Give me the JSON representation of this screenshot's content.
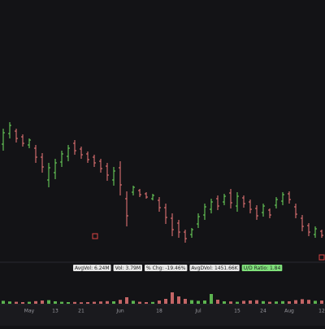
{
  "chart_data": {
    "type": "ohlc",
    "categories": [
      null,
      null,
      null,
      null,
      "May",
      null,
      null,
      null,
      "13",
      null,
      null,
      null,
      "21",
      null,
      null,
      null,
      null,
      null,
      "Jun",
      null,
      null,
      null,
      null,
      null,
      "18",
      null,
      null,
      null,
      null,
      null,
      "Jul",
      null,
      null,
      null,
      null,
      null,
      "15",
      null,
      null,
      null,
      "24",
      null,
      null,
      null,
      "Aug",
      null,
      null,
      null,
      null,
      "12"
    ],
    "open": [
      143,
      156,
      159,
      152,
      142,
      138,
      127,
      99,
      108,
      121,
      128,
      144,
      137,
      131,
      127,
      122,
      116,
      99,
      114,
      76,
      84,
      86,
      82,
      76,
      74,
      65,
      52,
      46,
      35,
      32,
      45,
      56,
      63,
      76,
      72,
      83,
      67,
      77,
      72,
      64,
      59,
      62,
      68,
      73,
      82,
      66,
      52,
      43,
      32,
      36
    ],
    "high": [
      162,
      170,
      162,
      155,
      150,
      142,
      132,
      120,
      125,
      135,
      142,
      148,
      140,
      134,
      130,
      125,
      120,
      115,
      122,
      85,
      92,
      88,
      84,
      82,
      78,
      70,
      58,
      50,
      38,
      40,
      58,
      70,
      76,
      80,
      82,
      88,
      84,
      80,
      75,
      68,
      70,
      64,
      78,
      84,
      85,
      70,
      56,
      46,
      42,
      38
    ],
    "low": [
      135,
      150,
      145,
      140,
      138,
      120,
      108,
      90,
      100,
      115,
      122,
      130,
      125,
      120,
      115,
      108,
      98,
      92,
      80,
      42,
      80,
      78,
      76,
      74,
      60,
      45,
      30,
      28,
      22,
      28,
      40,
      50,
      58,
      62,
      68,
      64,
      60,
      65,
      58,
      50,
      54,
      52,
      64,
      68,
      70,
      52,
      36,
      30,
      28,
      28
    ],
    "close": [
      157,
      166,
      150,
      144,
      148,
      127,
      115,
      114,
      120,
      131,
      138,
      135,
      130,
      124,
      120,
      113,
      105,
      110,
      93,
      55,
      90,
      81,
      78,
      80,
      65,
      53,
      38,
      35,
      27,
      38,
      54,
      66,
      72,
      67,
      79,
      71,
      79,
      70,
      63,
      55,
      67,
      56,
      75,
      81,
      75,
      57,
      42,
      35,
      39,
      31
    ],
    "volume": [
      18,
      14,
      12,
      10,
      12,
      16,
      20,
      22,
      15,
      12,
      10,
      11,
      9,
      10,
      12,
      14,
      16,
      15,
      24,
      40,
      18,
      12,
      10,
      11,
      20,
      30,
      70,
      45,
      30,
      22,
      18,
      20,
      60,
      25,
      15,
      14,
      12,
      18,
      20,
      22,
      16,
      12,
      14,
      16,
      15,
      22,
      28,
      24,
      18,
      20
    ],
    "ylim": [
      0,
      320
    ],
    "vlim": [
      0,
      100
    ],
    "up_color": "#6fdc5f",
    "down_color": "#f07a7a",
    "background": "#131316"
  },
  "stats": [
    "AvgVol: 6.24M",
    "Vol: 3.79M",
    "% Chg: -19.46%",
    "AvgDVol: 1451.66K",
    "U/D Ratio: 1.84"
  ]
}
